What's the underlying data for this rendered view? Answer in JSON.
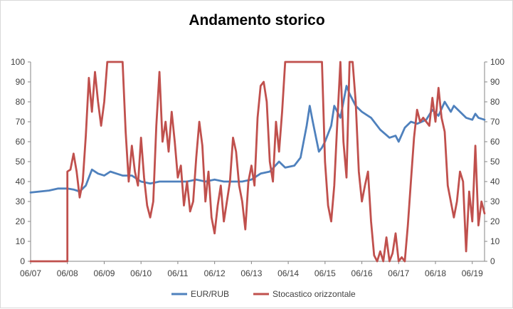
{
  "chart_data": {
    "type": "line",
    "title": "Andamento storico",
    "x_ticks": [
      "06/07",
      "06/08",
      "06/09",
      "06/10",
      "06/11",
      "06/12",
      "06/13",
      "06/14",
      "06/15",
      "06/16",
      "06/17",
      "06/18",
      "06/19"
    ],
    "xlim": [
      "06/07",
      "10/19"
    ],
    "ylim": [
      0,
      100
    ],
    "y_ticks": [
      0,
      10,
      20,
      30,
      40,
      50,
      60,
      70,
      80,
      90,
      100
    ],
    "y_ticks_right": [
      0,
      10,
      20,
      30,
      40,
      50,
      60,
      70,
      80,
      90,
      100
    ],
    "grid": false,
    "legend_position": "bottom",
    "series": [
      {
        "name": "EUR/RUB",
        "color": "#4f81bd",
        "points": [
          [
            "06/07",
            34.5
          ],
          [
            "09/07",
            35
          ],
          [
            "12/07",
            35.5
          ],
          [
            "03/08",
            36.5
          ],
          [
            "06/08",
            36.5
          ],
          [
            "08/08",
            36
          ],
          [
            "10/08",
            35
          ],
          [
            "12/08",
            38
          ],
          [
            "02/09",
            46
          ],
          [
            "04/09",
            44
          ],
          [
            "06/09",
            43
          ],
          [
            "08/09",
            45
          ],
          [
            "10/09",
            44
          ],
          [
            "12/09",
            43
          ],
          [
            "03/10",
            43
          ],
          [
            "06/10",
            40
          ],
          [
            "09/10",
            39
          ],
          [
            "12/10",
            40
          ],
          [
            "03/11",
            40
          ],
          [
            "06/11",
            40
          ],
          [
            "09/11",
            40
          ],
          [
            "12/11",
            41
          ],
          [
            "03/12",
            40
          ],
          [
            "06/12",
            41
          ],
          [
            "09/12",
            40
          ],
          [
            "12/12",
            40
          ],
          [
            "03/13",
            40
          ],
          [
            "06/13",
            41
          ],
          [
            "09/13",
            44
          ],
          [
            "12/13",
            45
          ],
          [
            "03/14",
            50
          ],
          [
            "05/14",
            47
          ],
          [
            "08/14",
            48
          ],
          [
            "10/14",
            52
          ],
          [
            "12/14",
            68
          ],
          [
            "01/15",
            78
          ],
          [
            "02/15",
            70
          ],
          [
            "04/15",
            55
          ],
          [
            "05/15",
            57
          ],
          [
            "06/15",
            60
          ],
          [
            "08/15",
            68
          ],
          [
            "09/15",
            78
          ],
          [
            "11/15",
            72
          ],
          [
            "12/15",
            80
          ],
          [
            "01/16",
            88
          ],
          [
            "02/16",
            84
          ],
          [
            "04/16",
            78
          ],
          [
            "06/16",
            75
          ],
          [
            "09/16",
            72
          ],
          [
            "12/16",
            66
          ],
          [
            "03/17",
            62
          ],
          [
            "05/17",
            63
          ],
          [
            "06/17",
            60
          ],
          [
            "08/17",
            67
          ],
          [
            "10/17",
            70
          ],
          [
            "12/17",
            69
          ],
          [
            "03/18",
            71
          ],
          [
            "05/18",
            76
          ],
          [
            "07/18",
            73
          ],
          [
            "09/18",
            80
          ],
          [
            "11/18",
            75
          ],
          [
            "12/18",
            78
          ],
          [
            "02/19",
            75
          ],
          [
            "04/19",
            72
          ],
          [
            "06/19",
            71
          ],
          [
            "07/19",
            74
          ],
          [
            "08/19",
            72
          ],
          [
            "10/19",
            71
          ]
        ]
      },
      {
        "name": "Stocastico orizzontale",
        "color": "#c0504d",
        "points": [
          [
            "06/07",
            0
          ],
          [
            "05/08",
            0
          ],
          [
            "06/08",
            0
          ],
          [
            "06/08",
            45
          ],
          [
            "07/08",
            46
          ],
          [
            "08/08",
            54
          ],
          [
            "09/08",
            45
          ],
          [
            "10/08",
            32
          ],
          [
            "11/08",
            40
          ],
          [
            "12/08",
            63
          ],
          [
            "01/09",
            92
          ],
          [
            "02/09",
            75
          ],
          [
            "03/09",
            95
          ],
          [
            "04/09",
            80
          ],
          [
            "05/09",
            68
          ],
          [
            "06/09",
            80
          ],
          [
            "07/09",
            100
          ],
          [
            "09/09",
            100
          ],
          [
            "12/09",
            100
          ],
          [
            "01/10",
            65
          ],
          [
            "02/10",
            40
          ],
          [
            "03/10",
            58
          ],
          [
            "04/10",
            45
          ],
          [
            "05/10",
            38
          ],
          [
            "06/10",
            62
          ],
          [
            "07/10",
            42
          ],
          [
            "08/10",
            28
          ],
          [
            "09/10",
            22
          ],
          [
            "10/10",
            30
          ],
          [
            "11/10",
            68
          ],
          [
            "12/10",
            95
          ],
          [
            "01/11",
            60
          ],
          [
            "02/11",
            70
          ],
          [
            "03/11",
            55
          ],
          [
            "04/11",
            75
          ],
          [
            "05/11",
            60
          ],
          [
            "06/11",
            42
          ],
          [
            "07/11",
            48
          ],
          [
            "08/11",
            28
          ],
          [
            "09/11",
            40
          ],
          [
            "10/11",
            25
          ],
          [
            "11/11",
            30
          ],
          [
            "12/11",
            52
          ],
          [
            "01/12",
            70
          ],
          [
            "02/12",
            58
          ],
          [
            "03/12",
            30
          ],
          [
            "04/12",
            45
          ],
          [
            "05/12",
            22
          ],
          [
            "06/12",
            14
          ],
          [
            "07/12",
            28
          ],
          [
            "08/12",
            38
          ],
          [
            "09/12",
            20
          ],
          [
            "10/12",
            30
          ],
          [
            "11/12",
            40
          ],
          [
            "12/12",
            62
          ],
          [
            "01/13",
            55
          ],
          [
            "02/13",
            38
          ],
          [
            "03/13",
            30
          ],
          [
            "04/13",
            16
          ],
          [
            "05/13",
            40
          ],
          [
            "06/13",
            48
          ],
          [
            "07/13",
            38
          ],
          [
            "08/13",
            72
          ],
          [
            "09/13",
            88
          ],
          [
            "10/13",
            90
          ],
          [
            "11/13",
            80
          ],
          [
            "12/13",
            50
          ],
          [
            "01/14",
            40
          ],
          [
            "02/14",
            70
          ],
          [
            "03/14",
            55
          ],
          [
            "04/14",
            75
          ],
          [
            "05/14",
            100
          ],
          [
            "03/15",
            100
          ],
          [
            "05/15",
            100
          ],
          [
            "06/15",
            50
          ],
          [
            "07/15",
            28
          ],
          [
            "08/15",
            20
          ],
          [
            "09/15",
            38
          ],
          [
            "10/15",
            70
          ],
          [
            "11/15",
            100
          ],
          [
            "12/15",
            60
          ],
          [
            "01/16",
            42
          ],
          [
            "02/16",
            100
          ],
          [
            "03/16",
            100
          ],
          [
            "04/16",
            80
          ],
          [
            "05/16",
            45
          ],
          [
            "06/16",
            30
          ],
          [
            "07/16",
            38
          ],
          [
            "08/16",
            45
          ],
          [
            "09/16",
            20
          ],
          [
            "10/16",
            3
          ],
          [
            "11/16",
            0
          ],
          [
            "12/16",
            5
          ],
          [
            "01/17",
            0
          ],
          [
            "02/17",
            12
          ],
          [
            "03/17",
            0
          ],
          [
            "04/17",
            4
          ],
          [
            "05/17",
            14
          ],
          [
            "06/17",
            0
          ],
          [
            "07/17",
            2
          ],
          [
            "08/17",
            0
          ],
          [
            "09/17",
            18
          ],
          [
            "10/17",
            40
          ],
          [
            "11/17",
            62
          ],
          [
            "12/17",
            76
          ],
          [
            "01/18",
            70
          ],
          [
            "02/18",
            72
          ],
          [
            "03/18",
            70
          ],
          [
            "04/18",
            68
          ],
          [
            "05/18",
            82
          ],
          [
            "06/18",
            70
          ],
          [
            "07/18",
            87
          ],
          [
            "08/18",
            72
          ],
          [
            "09/18",
            65
          ],
          [
            "10/18",
            38
          ],
          [
            "11/18",
            30
          ],
          [
            "12/18",
            22
          ],
          [
            "01/19",
            30
          ],
          [
            "02/19",
            45
          ],
          [
            "03/19",
            40
          ],
          [
            "04/19",
            5
          ],
          [
            "05/19",
            35
          ],
          [
            "06/19",
            20
          ],
          [
            "07/19",
            58
          ],
          [
            "08/19",
            18
          ],
          [
            "09/19",
            30
          ],
          [
            "10/19",
            24
          ]
        ]
      }
    ]
  }
}
